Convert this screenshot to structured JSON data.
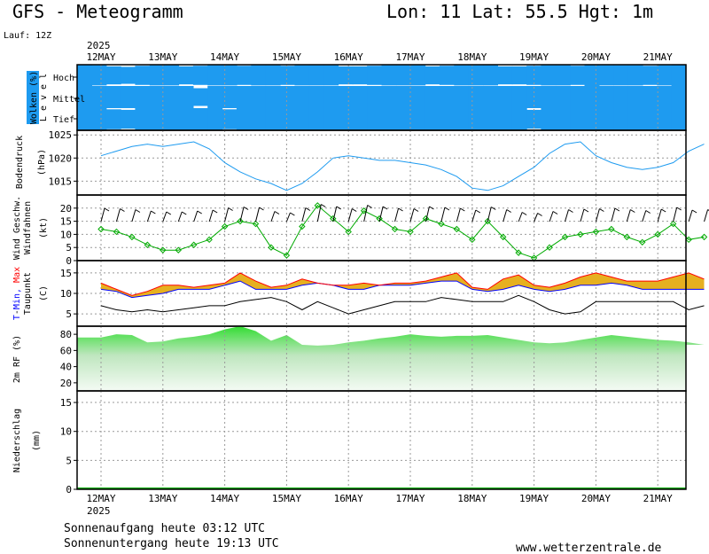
{
  "header": {
    "title": "GFS - Meteogramm",
    "location": "Lon: 11 Lat: 55.5 Hgt: 1m",
    "run": "Lauf: 12Z",
    "year": "2025"
  },
  "footer": {
    "sunrise": "Sonnenaufgang heute 03:12 UTC",
    "sunset": "Sonnenuntergang heute 19:13 UTC",
    "website": "www.wetterzentrale.de"
  },
  "colors": {
    "cloud_blue": "#1e9bf0",
    "pressure_line": "#1e9bf0",
    "wind_green": "#00aa00",
    "temp_fill": "#e6b020",
    "tmin_blue": "#0000ff",
    "tmax_red": "#ff0000",
    "rh_green": "#33dd33",
    "precip_green": "#00aa00"
  },
  "chart_data": [
    {
      "type": "heatmap",
      "ylabel": "Wolken (%)",
      "levels": [
        "Hoch",
        "Mittel",
        "Tief"
      ],
      "level_axis_label": "L e v e l",
      "days": [
        "12MAY",
        "13MAY",
        "14MAY",
        "15MAY",
        "16MAY",
        "17MAY",
        "18MAY",
        "19MAY",
        "20MAY",
        "21MAY"
      ],
      "hoch": [
        100,
        95,
        85,
        80,
        90,
        95,
        95,
        85,
        90,
        95,
        95,
        90,
        95,
        95,
        90,
        95,
        95,
        95,
        85,
        85,
        90,
        95,
        95,
        95,
        85,
        90,
        95,
        95,
        95,
        85,
        85,
        90,
        95,
        95,
        90,
        100,
        95,
        95,
        95,
        90,
        95,
        100
      ],
      "mittel": [
        100,
        100,
        100,
        100,
        100,
        100,
        100,
        100,
        80,
        100,
        100,
        100,
        100,
        100,
        100,
        100,
        100,
        100,
        100,
        100,
        100,
        100,
        100,
        100,
        100,
        100,
        100,
        100,
        100,
        100,
        100,
        100,
        100,
        100,
        100,
        100,
        100,
        100,
        100,
        100,
        100,
        100
      ],
      "tief": [
        100,
        100,
        90,
        85,
        100,
        100,
        100,
        100,
        100,
        100,
        90,
        100,
        100,
        100,
        100,
        100,
        100,
        100,
        100,
        100,
        100,
        100,
        100,
        100,
        100,
        100,
        100,
        100,
        100,
        100,
        100,
        85,
        100,
        100,
        100,
        100,
        100,
        100,
        100,
        100,
        100,
        100
      ]
    },
    {
      "type": "line",
      "ylabel": "Bodendruck",
      "unit": "(hPa)",
      "ylim": [
        1012,
        1026
      ],
      "ticks": [
        1015,
        1020,
        1025
      ],
      "x_days": [
        0,
        0.25,
        0.5,
        0.75,
        1,
        1.25,
        1.5,
        1.75,
        2,
        2.25,
        2.5,
        2.75,
        3,
        3.25,
        3.5,
        3.75,
        4,
        4.25,
        4.5,
        4.75,
        5,
        5.25,
        5.5,
        5.75,
        6,
        6.25,
        6.5,
        6.75,
        7,
        7.25,
        7.5,
        7.75,
        8,
        8.25,
        8.5,
        8.75,
        9,
        9.25,
        9.5,
        9.75
      ],
      "values": [
        1020.5,
        1021.5,
        1022.5,
        1023,
        1022.5,
        1023,
        1023.5,
        1022,
        1019,
        1017,
        1015.5,
        1014.5,
        1013,
        1014.5,
        1017,
        1020,
        1020.5,
        1020,
        1019.5,
        1019.5,
        1019,
        1018.5,
        1017.5,
        1016,
        1013.5,
        1013,
        1014,
        1016,
        1018,
        1021,
        1023,
        1023.5,
        1020.5,
        1019,
        1018,
        1017.5,
        1018,
        1019,
        1021.5,
        1023
      ]
    },
    {
      "type": "line",
      "ylabel": "Wind Geschw.",
      "ylabel2": "Windfahnen",
      "unit": "(kt)",
      "ylim": [
        0,
        25
      ],
      "ticks": [
        0,
        5,
        10,
        15,
        20
      ],
      "x_days": [
        0,
        0.25,
        0.5,
        0.75,
        1,
        1.25,
        1.5,
        1.75,
        2,
        2.25,
        2.5,
        2.75,
        3,
        3.25,
        3.5,
        3.75,
        4,
        4.25,
        4.5,
        4.75,
        5,
        5.25,
        5.5,
        5.75,
        6,
        6.25,
        6.5,
        6.75,
        7,
        7.25,
        7.5,
        7.75,
        8,
        8.25,
        8.5,
        8.75,
        9,
        9.25,
        9.5,
        9.75
      ],
      "values": [
        12,
        11,
        9,
        6,
        4,
        4,
        6,
        8,
        13,
        15,
        14,
        5,
        2,
        13,
        21,
        16,
        11,
        19,
        16,
        12,
        11,
        16,
        14,
        12,
        8,
        15,
        9,
        3,
        1,
        5,
        9,
        10,
        11,
        12,
        9,
        7,
        10,
        14,
        8,
        9
      ]
    },
    {
      "type": "line",
      "ylabel": "T-Min, Max",
      "ylabel2": "Taupunkt",
      "unit": "(C)",
      "ylim": [
        2,
        18
      ],
      "ticks": [
        5,
        10,
        15
      ],
      "x_days": [
        0,
        0.25,
        0.5,
        0.75,
        1,
        1.25,
        1.5,
        1.75,
        2,
        2.25,
        2.5,
        2.75,
        3,
        3.25,
        3.5,
        3.75,
        4,
        4.25,
        4.5,
        4.75,
        5,
        5.25,
        5.5,
        5.75,
        6,
        6.25,
        6.5,
        6.75,
        7,
        7.25,
        7.5,
        7.75,
        8,
        8.25,
        8.5,
        8.75,
        9,
        9.25,
        9.5,
        9.75
      ],
      "series": [
        {
          "name": "T-Min",
          "values": [
            11,
            10.5,
            9,
            9.5,
            10,
            11,
            11,
            11,
            12,
            13,
            11,
            11,
            11,
            12,
            12.5,
            12,
            11,
            11,
            12,
            12,
            12,
            12.5,
            13,
            13,
            11,
            10.5,
            11,
            12,
            11,
            10.5,
            11,
            12,
            12,
            12.5,
            12,
            11,
            11,
            11,
            11,
            11
          ]
        },
        {
          "name": "Max",
          "values": [
            12.5,
            11,
            9.5,
            10.5,
            12,
            12,
            11.5,
            12,
            12.5,
            15,
            13,
            11.5,
            12,
            13.5,
            12.5,
            12,
            12,
            12.5,
            12,
            12.5,
            12.5,
            13,
            14,
            15,
            11.5,
            11,
            13.5,
            14.5,
            12,
            11.5,
            12.5,
            14,
            15,
            14,
            13,
            13,
            13,
            14,
            15,
            13.5
          ]
        },
        {
          "name": "Taupunkt",
          "values": [
            7,
            6,
            5.5,
            6,
            5.5,
            6,
            6.5,
            7,
            7,
            8,
            8.5,
            9,
            8,
            6,
            8,
            6.5,
            5,
            6,
            7,
            8,
            8,
            8,
            9,
            8.5,
            8,
            8,
            8,
            9.5,
            8,
            6,
            5,
            5.5,
            8,
            8,
            8,
            8,
            8,
            8,
            6,
            7
          ]
        }
      ]
    },
    {
      "type": "area",
      "ylabel": "2m RF (%)",
      "ylim": [
        10,
        90
      ],
      "ticks": [
        20,
        40,
        60,
        80
      ],
      "x_days": [
        0,
        0.25,
        0.5,
        0.75,
        1,
        1.25,
        1.5,
        1.75,
        2,
        2.25,
        2.5,
        2.75,
        3,
        3.25,
        3.5,
        3.75,
        4,
        4.25,
        4.5,
        4.75,
        5,
        5.25,
        5.5,
        5.75,
        6,
        6.25,
        6.5,
        6.75,
        7,
        7.25,
        7.5,
        7.75,
        8,
        8.25,
        8.5,
        8.75,
        9,
        9.25,
        9.5,
        9.75
      ],
      "values": [
        76,
        80,
        79,
        70,
        71,
        75,
        77,
        80,
        86,
        90,
        84,
        72,
        79,
        67,
        66,
        67,
        70,
        72,
        75,
        77,
        80,
        78,
        77,
        78,
        78,
        79,
        76,
        73,
        70,
        69,
        70,
        73,
        76,
        79,
        77,
        75,
        73,
        72,
        70,
        67
      ]
    },
    {
      "type": "bar",
      "ylabel": "Niederschlag",
      "unit": "(mm)",
      "ylim": [
        0,
        17
      ],
      "ticks": [
        0,
        5,
        10,
        15
      ],
      "days": [
        "12MAY",
        "13MAY",
        "14MAY",
        "15MAY",
        "16MAY",
        "17MAY",
        "18MAY",
        "19MAY",
        "20MAY",
        "21MAY"
      ],
      "values": [
        0,
        0,
        0,
        0,
        0,
        0,
        0,
        0.1,
        0,
        0
      ]
    }
  ]
}
